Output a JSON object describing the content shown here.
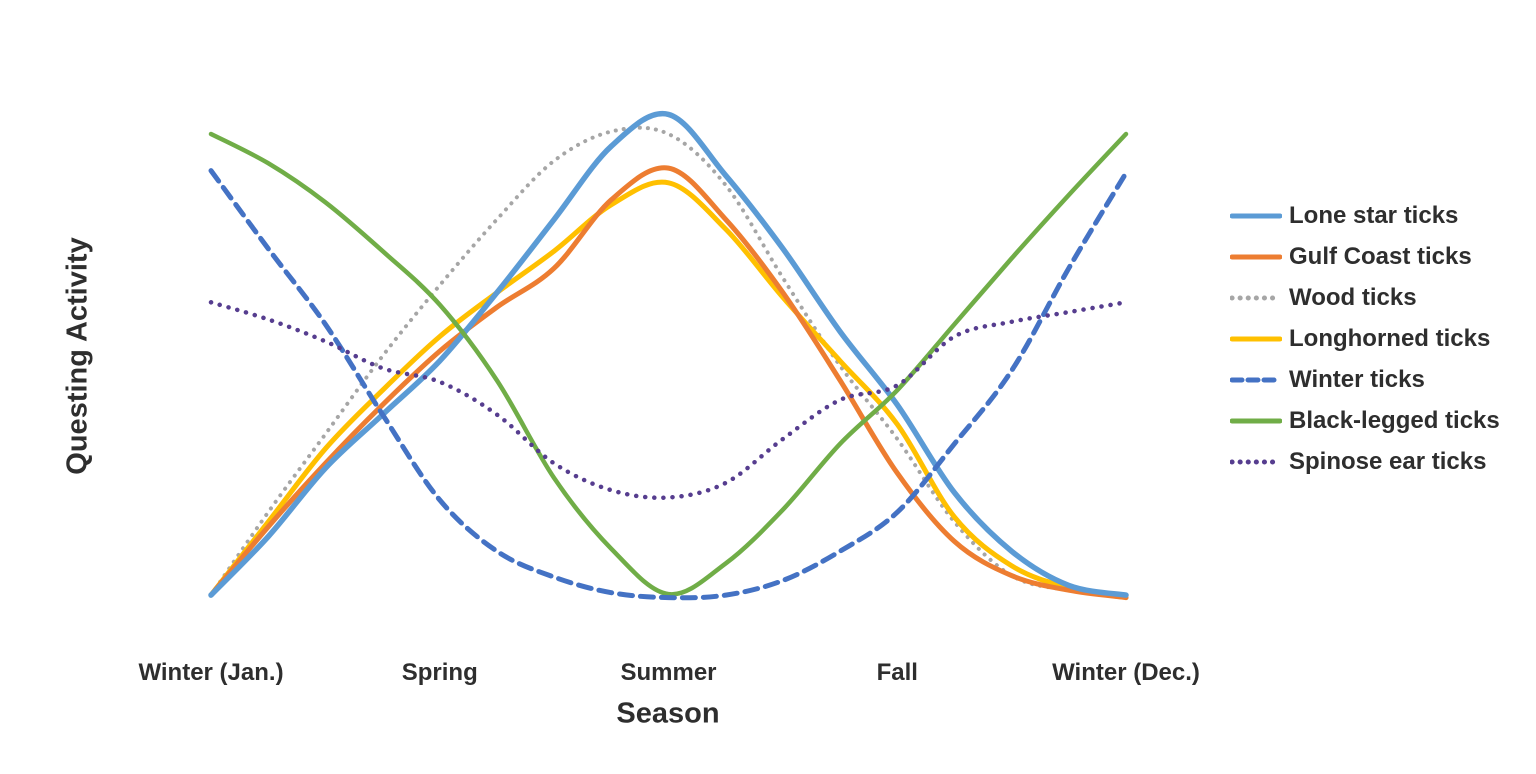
{
  "figure": {
    "background_color": "#ffffff",
    "text_color": "#2e2e2e"
  },
  "chart_data": {
    "type": "line",
    "title": "",
    "xlabel": "Season",
    "ylabel": "Questing Activity",
    "categories": [
      "Winter (Jan.)",
      "Spring",
      "Summer",
      "Fall",
      "Winter (Dec.)"
    ],
    "x_sample_positions_note": "values sampled at season index 0..4 in steps of 0.25 (0=Winter Jan, 1=Spring, 2=Summer, 3=Fall, 4=Winter Dec)",
    "x_sample_step": 0.25,
    "ylim": [
      0,
      1
    ],
    "y_tick_labels": [],
    "grid": false,
    "legend_position": "right",
    "series": [
      {
        "name": "Lone star ticks",
        "color": "#5B9BD5",
        "style": "solid",
        "width": 5.5,
        "values": [
          0.01,
          0.13,
          0.27,
          0.38,
          0.49,
          0.63,
          0.78,
          0.93,
          0.995,
          0.87,
          0.72,
          0.55,
          0.4,
          0.22,
          0.1,
          0.03,
          0.01
        ]
      },
      {
        "name": "Gulf Coast ticks",
        "color": "#ED7D31",
        "style": "solid",
        "width": 5,
        "values": [
          0.01,
          0.15,
          0.28,
          0.4,
          0.51,
          0.6,
          0.68,
          0.82,
          0.885,
          0.78,
          0.63,
          0.45,
          0.26,
          0.12,
          0.05,
          0.02,
          0.005
        ]
      },
      {
        "name": "Wood ticks",
        "color": "#A6A6A6",
        "style": "dotted",
        "width": 4,
        "values": [
          0.01,
          0.18,
          0.34,
          0.5,
          0.645,
          0.78,
          0.9,
          0.96,
          0.955,
          0.85,
          0.66,
          0.48,
          0.33,
          0.16,
          0.05,
          0.02,
          0.005
        ]
      },
      {
        "name": "Longhorned ticks",
        "color": "#FFC000",
        "style": "solid",
        "width": 5,
        "values": [
          0.01,
          0.16,
          0.31,
          0.43,
          0.54,
          0.63,
          0.715,
          0.81,
          0.855,
          0.76,
          0.62,
          0.49,
          0.36,
          0.17,
          0.07,
          0.025,
          0.005
        ]
      },
      {
        "name": "Winter ticks",
        "color": "#4472C4",
        "style": "dashed",
        "width": 5,
        "values": [
          0.88,
          0.72,
          0.565,
          0.38,
          0.205,
          0.1,
          0.047,
          0.015,
          0.005,
          0.01,
          0.04,
          0.1,
          0.18,
          0.32,
          0.47,
          0.68,
          0.875
        ]
      },
      {
        "name": "Black-legged ticks",
        "color": "#70AD47",
        "style": "solid",
        "width": 4.5,
        "values": [
          0.955,
          0.895,
          0.815,
          0.715,
          0.605,
          0.45,
          0.25,
          0.105,
          0.012,
          0.075,
          0.185,
          0.32,
          0.43,
          0.565,
          0.7,
          0.83,
          0.955
        ]
      },
      {
        "name": "Spinose ear ticks",
        "color": "#563D8F",
        "style": "dotted",
        "width": 4.5,
        "values": [
          0.61,
          0.575,
          0.53,
          0.475,
          0.447,
          0.38,
          0.28,
          0.225,
          0.21,
          0.24,
          0.33,
          0.41,
          0.44,
          0.54,
          0.57,
          0.59,
          0.61
        ]
      }
    ]
  }
}
